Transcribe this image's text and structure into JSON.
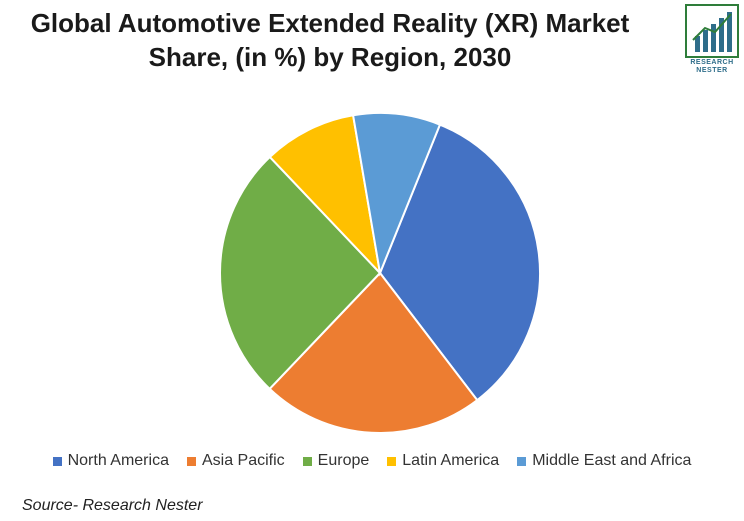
{
  "title_line1": "Global Automotive Extended Reality (XR) Market",
  "title_line2": "Share, (in %) by Region, 2030",
  "logo": {
    "line1": "RESEARCH",
    "line2": "NESTER",
    "bar_color": "#2e6d8a",
    "frame_color": "#2e7d3a"
  },
  "source": "Source- Research Nester",
  "chart_data": {
    "type": "pie",
    "title": "Global Automotive Extended Reality (XR) Market Share, (in %) by Region, 2030",
    "legend_position": "bottom",
    "categories": [
      "North America",
      "Asia Pacific",
      "Europe",
      "Latin America",
      "Middle East and Africa"
    ],
    "values": [
      33.5,
      22.5,
      25.8,
      9.4,
      8.8
    ],
    "colors": [
      "#4472c4",
      "#ed7d31",
      "#70ad47",
      "#ffc000",
      "#5b9bd5"
    ],
    "start_angle_deg": 22
  }
}
